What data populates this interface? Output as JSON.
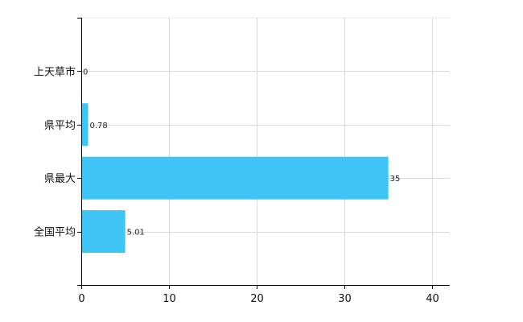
{
  "chart_data": {
    "type": "bar",
    "orientation": "horizontal",
    "categories": [
      "上天草市",
      "県平均",
      "県最大",
      "全国平均"
    ],
    "values": [
      0,
      0.78,
      35,
      5.01
    ],
    "value_labels": [
      "0",
      "0.78",
      "35",
      "5.01"
    ],
    "xlim": [
      0,
      42
    ],
    "xticks": [
      0,
      10,
      20,
      30,
      40
    ],
    "grid": true,
    "bar_color": "#3EC5F5",
    "grid_color": "#D8D8D8",
    "axis_color": "#000000"
  }
}
